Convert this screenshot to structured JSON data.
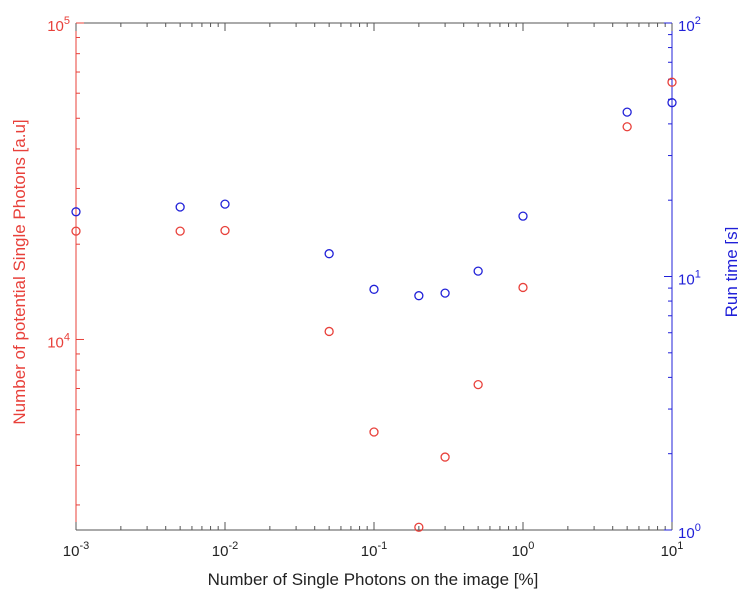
{
  "chart_data": {
    "type": "scatter",
    "title": "",
    "xlabel": "Number of Single Photons on the image [%]",
    "ylabel_left": "Number of potential Single Photons [a.u]",
    "ylabel_right": "Run time [s]",
    "x_scale": "log",
    "y_left_scale": "log",
    "y_right_scale": "log",
    "xlim": [
      0.001,
      10
    ],
    "ylim_left": [
      2500,
      100000
    ],
    "ylim_right": [
      1,
      100
    ],
    "grid": false,
    "legend": "none",
    "x_ticks": [
      {
        "value": 0.001,
        "base": "10",
        "exp": "-3"
      },
      {
        "value": 0.01,
        "base": "10",
        "exp": "-2"
      },
      {
        "value": 0.1,
        "base": "10",
        "exp": "-1"
      },
      {
        "value": 1,
        "base": "10",
        "exp": "0"
      },
      {
        "value": 10,
        "base": "10",
        "exp": "1"
      }
    ],
    "y_left_ticks": [
      {
        "value": 10000,
        "base": "10",
        "exp": "4"
      },
      {
        "value": 100000,
        "base": "10",
        "exp": "5"
      }
    ],
    "y_right_ticks": [
      {
        "value": 1,
        "base": "10",
        "exp": "0"
      },
      {
        "value": 10,
        "base": "10",
        "exp": "1"
      },
      {
        "value": 100,
        "base": "10",
        "exp": "2"
      }
    ],
    "series": [
      {
        "axis": "left",
        "color": "#e8403a",
        "marker": "circle-open",
        "x": [
          0.001,
          0.005,
          0.01,
          0.05,
          0.1,
          0.2,
          0.3,
          0.5,
          1,
          5,
          10
        ],
        "y": [
          22000,
          22000,
          22100,
          10600,
          5100,
          2550,
          4250,
          7200,
          14600,
          47000,
          65000
        ]
      },
      {
        "axis": "right",
        "color": "#2020d8",
        "marker": "circle-open",
        "x": [
          0.001,
          0.005,
          0.01,
          0.05,
          0.1,
          0.2,
          0.3,
          0.5,
          1,
          5,
          10
        ],
        "y": [
          18,
          18.8,
          19.3,
          12.3,
          8.9,
          8.4,
          8.6,
          10.5,
          17.3,
          44.5,
          48.5
        ]
      }
    ],
    "colors": {
      "left_axis": "#e8403a",
      "right_axis": "#2020d8",
      "frame": "#555555"
    }
  }
}
